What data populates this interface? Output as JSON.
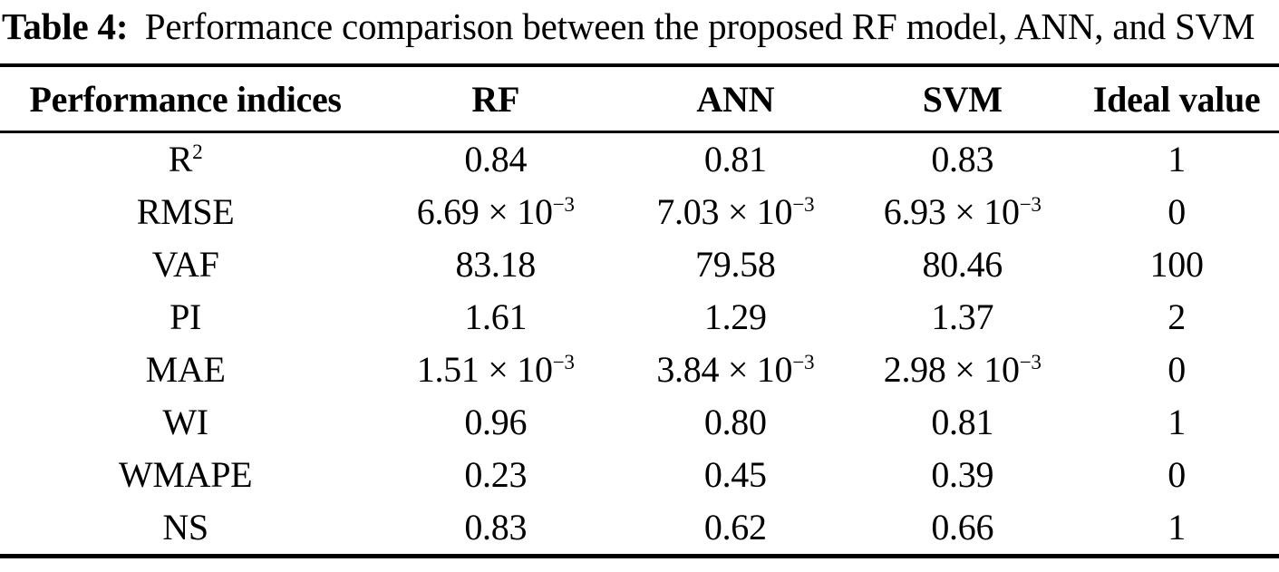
{
  "caption": {
    "label": "Table 4:",
    "text": "Performance comparison between the proposed RF model, ANN, and SVM"
  },
  "table": {
    "columns": [
      "Performance indices",
      "RF",
      "ANN",
      "SVM",
      "Ideal value"
    ],
    "rows": [
      [
        "R^{2}",
        "0.84",
        "0.81",
        "0.83",
        "1"
      ],
      [
        "RMSE",
        "6.69 × 10^{−3}",
        "7.03 × 10^{−3}",
        "6.93 × 10^{−3}",
        "0"
      ],
      [
        "VAF",
        "83.18",
        "79.58",
        "80.46",
        "100"
      ],
      [
        "PI",
        "1.61",
        "1.29",
        "1.37",
        "2"
      ],
      [
        "MAE",
        "1.51 × 10^{−3}",
        "3.84 × 10^{−3}",
        "2.98 × 10^{−3}",
        "0"
      ],
      [
        "WI",
        "0.96",
        "0.80",
        "0.81",
        "1"
      ],
      [
        "WMAPE",
        "0.23",
        "0.45",
        "0.39",
        "0"
      ],
      [
        "NS",
        "0.83",
        "0.62",
        "0.66",
        "1"
      ]
    ]
  },
  "colors": {
    "text": "#000000",
    "background": "#ffffff",
    "rule": "#000000"
  }
}
